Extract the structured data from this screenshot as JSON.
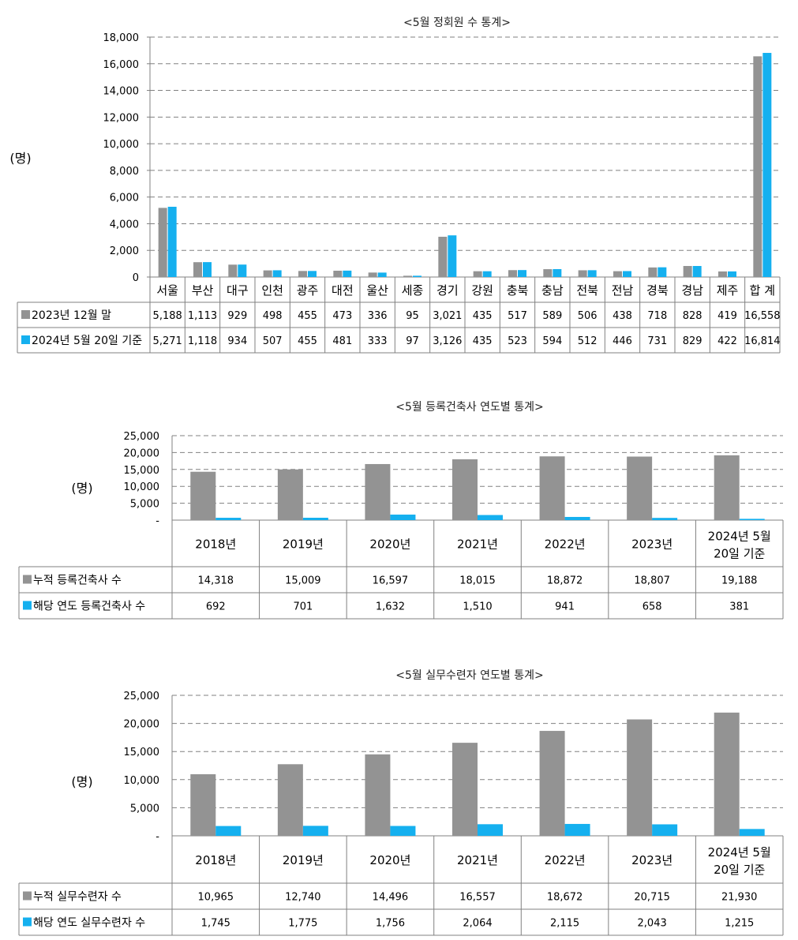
{
  "colors": {
    "gray": "#939393",
    "blue": "#15b0ef"
  },
  "chart_data": [
    {
      "type": "bar",
      "title": "<5월 정회원 수 통계>",
      "ylabel": "(명)",
      "ylim": [
        0,
        18000
      ],
      "yticks": [
        0,
        2000,
        4000,
        6000,
        8000,
        10000,
        12000,
        14000,
        16000,
        18000
      ],
      "ytick_labels": [
        "0",
        "2,000",
        "4,000",
        "6,000",
        "8,000",
        "10,000",
        "12,000",
        "14,000",
        "16,000",
        "18,000"
      ],
      "categories": [
        "서울",
        "부산",
        "대구",
        "인천",
        "광주",
        "대전",
        "울산",
        "세종",
        "경기",
        "강원",
        "충북",
        "충남",
        "전북",
        "전남",
        "경북",
        "경남",
        "제주",
        "합 계"
      ],
      "series": [
        {
          "name": "2023년 12월 말",
          "color": "#939393",
          "values": [
            5188,
            1113,
            929,
            498,
            455,
            473,
            336,
            95,
            3021,
            435,
            517,
            589,
            506,
            438,
            718,
            828,
            419,
            16558
          ],
          "labels": [
            "5,188",
            "1,113",
            "929",
            "498",
            "455",
            "473",
            "336",
            "95",
            "3,021",
            "435",
            "517",
            "589",
            "506",
            "438",
            "718",
            "828",
            "419",
            "16,558"
          ]
        },
        {
          "name": "2024년 5월 20일 기준",
          "color": "#15b0ef",
          "values": [
            5271,
            1118,
            934,
            507,
            455,
            481,
            333,
            97,
            3126,
            435,
            523,
            594,
            512,
            446,
            731,
            829,
            422,
            16814
          ],
          "labels": [
            "5,271",
            "1,118",
            "934",
            "507",
            "455",
            "481",
            "333",
            "97",
            "3,126",
            "435",
            "523",
            "594",
            "512",
            "446",
            "731",
            "829",
            "422",
            "16,814"
          ]
        }
      ],
      "grid": true,
      "legend": "data-table"
    },
    {
      "type": "bar",
      "title": "<5월 등록건축사 연도별 통계>",
      "ylabel": "(명)",
      "ylim": [
        0,
        25000
      ],
      "yticks": [
        0,
        5000,
        10000,
        15000,
        20000,
        25000
      ],
      "ytick_labels": [
        "-",
        "5,000",
        "10,000",
        "15,000",
        "20,000",
        "25,000"
      ],
      "categories": [
        "2018년",
        "2019년",
        "2020년",
        "2021년",
        "2022년",
        "2023년",
        "2024년 5월\n20일 기준"
      ],
      "series": [
        {
          "name": "누적 등록건축사 수",
          "color": "#939393",
          "values": [
            14318,
            15009,
            16597,
            18015,
            18872,
            18807,
            19188
          ],
          "labels": [
            "14,318",
            "15,009",
            "16,597",
            "18,015",
            "18,872",
            "18,807",
            "19,188"
          ]
        },
        {
          "name": "해당 연도 등록건축사 수",
          "color": "#15b0ef",
          "values": [
            692,
            701,
            1632,
            1510,
            941,
            658,
            381
          ],
          "labels": [
            "692",
            "701",
            "1,632",
            "1,510",
            "941",
            "658",
            "381"
          ]
        }
      ],
      "grid": true,
      "legend": "data-table"
    },
    {
      "type": "bar",
      "title": "<5월 실무수련자 연도별 통계>",
      "ylabel": "(명)",
      "ylim": [
        0,
        25000
      ],
      "yticks": [
        0,
        5000,
        10000,
        15000,
        20000,
        25000
      ],
      "ytick_labels": [
        "-",
        "5,000",
        "10,000",
        "15,000",
        "20,000",
        "25,000"
      ],
      "categories": [
        "2018년",
        "2019년",
        "2020년",
        "2021년",
        "2022년",
        "2023년",
        "2024년 5월\n20일 기준"
      ],
      "series": [
        {
          "name": "누적 실무수련자 수",
          "color": "#939393",
          "values": [
            10965,
            12740,
            14496,
            16557,
            18672,
            20715,
            21930
          ],
          "labels": [
            "10,965",
            "12,740",
            "14,496",
            "16,557",
            "18,672",
            "20,715",
            "21,930"
          ]
        },
        {
          "name": "해당 연도 실무수련자 수",
          "color": "#15b0ef",
          "values": [
            1745,
            1775,
            1756,
            2064,
            2115,
            2043,
            1215
          ],
          "labels": [
            "1,745",
            "1,775",
            "1,756",
            "2,064",
            "2,115",
            "2,043",
            "1,215"
          ]
        }
      ],
      "grid": true,
      "legend": "data-table"
    }
  ]
}
